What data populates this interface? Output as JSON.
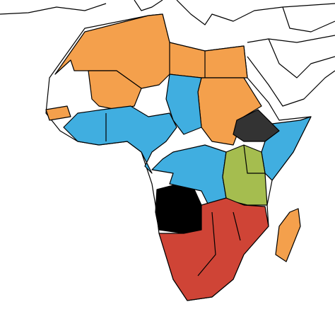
{
  "map": {
    "fills": [
      "#f4a04c",
      "#40aee0",
      "#a5bd4f",
      "#333333",
      "#000000",
      "#cf4436",
      "#ffffff"
    ]
  }
}
